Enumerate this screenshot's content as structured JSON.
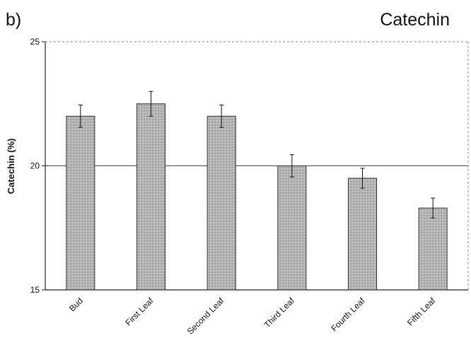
{
  "panel_label": "b)",
  "chart_data": {
    "type": "bar",
    "title": "Catechin",
    "xlabel": "",
    "ylabel": "Catechin (%)",
    "ylim": [
      15,
      25
    ],
    "yticks": [
      15,
      20,
      25
    ],
    "grid": true,
    "categories": [
      "Bud",
      "First Leaf",
      "Second Leaf",
      "Third Leaf",
      "Fourth Leaf",
      "Fifth Leaf"
    ],
    "values": [
      22.0,
      22.5,
      22.0,
      20.0,
      19.5,
      18.3
    ],
    "errors": [
      0.45,
      0.5,
      0.45,
      0.45,
      0.4,
      0.4
    ],
    "bar_color": "#b4b4b4"
  }
}
